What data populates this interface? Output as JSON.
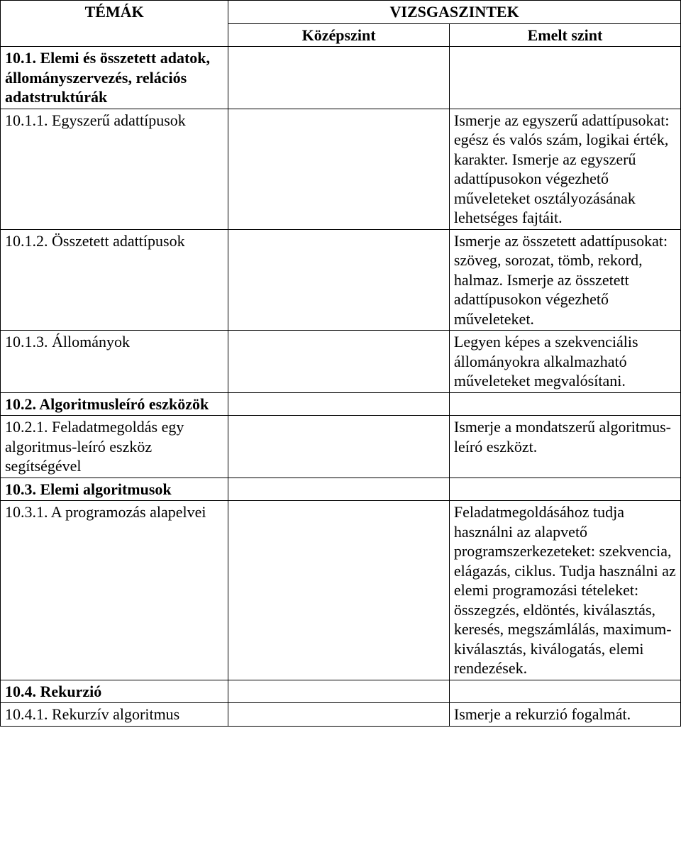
{
  "header": {
    "topics": "TÉMÁK",
    "levels": "VIZSGASZINTEK",
    "mid": "Középszint",
    "adv": "Emelt szint"
  },
  "rows": {
    "r1": {
      "topic": "10.1. Elemi és összetett adatok, állományszervezés, relációs adatstruktúrák",
      "topic_bold": true,
      "mid": "",
      "adv": ""
    },
    "r2": {
      "topic": "10.1.1. Egyszerű adattípusok",
      "topic_bold": false,
      "mid": "",
      "adv": "Ismerje az egyszerű adattípusokat: egész és valós szám, logikai érték, karakter. Ismerje az egyszerű adattípusokon végezhető műveleteket osztályozásának lehetséges fajtáit."
    },
    "r3": {
      "topic": "10.1.2. Összetett adattípusok",
      "topic_bold": false,
      "mid": "",
      "adv": "Ismerje az összetett adattípusokat: szöveg, sorozat, tömb, rekord, halmaz. Ismerje az összetett adattípusokon végezhető műveleteket."
    },
    "r4": {
      "topic": "10.1.3. Állományok",
      "topic_bold": false,
      "mid": "",
      "adv": "Legyen képes a szekvenciális állományokra alkalmazható műveleteket megvalósítani."
    },
    "r5": {
      "topic": "10.2. Algoritmusleíró eszközök",
      "topic_bold": true,
      "mid": "",
      "adv": ""
    },
    "r6": {
      "topic": "10.2.1. Feladatmegoldás egy algoritmus-leíró eszköz segítségével",
      "topic_bold": false,
      "mid": "",
      "adv": "Ismerje a mondatszerű algoritmus-leíró eszközt."
    },
    "r7": {
      "topic": "10.3. Elemi algoritmusok",
      "topic_bold": true,
      "mid": "",
      "adv": ""
    },
    "r8": {
      "topic": "10.3.1. A programozás alapelvei",
      "topic_bold": false,
      "mid": "",
      "adv": "Feladatmegoldásához tudja használni az alapvető programszerkezeteket: szekvencia, elágazás, ciklus. Tudja használni az elemi programozási tételeket: összegzés, eldöntés, kiválasztás, keresés, megszámlálás, maximum-kiválasztás, kiválogatás, elemi rendezések."
    },
    "r9": {
      "topic": "10.4. Rekurzió",
      "topic_bold": true,
      "mid": "",
      "adv": ""
    },
    "r10": {
      "topic": "10.4.1. Rekurzív algoritmus",
      "topic_bold": false,
      "mid": "",
      "adv": "Ismerje a rekurzió fogalmát."
    }
  }
}
